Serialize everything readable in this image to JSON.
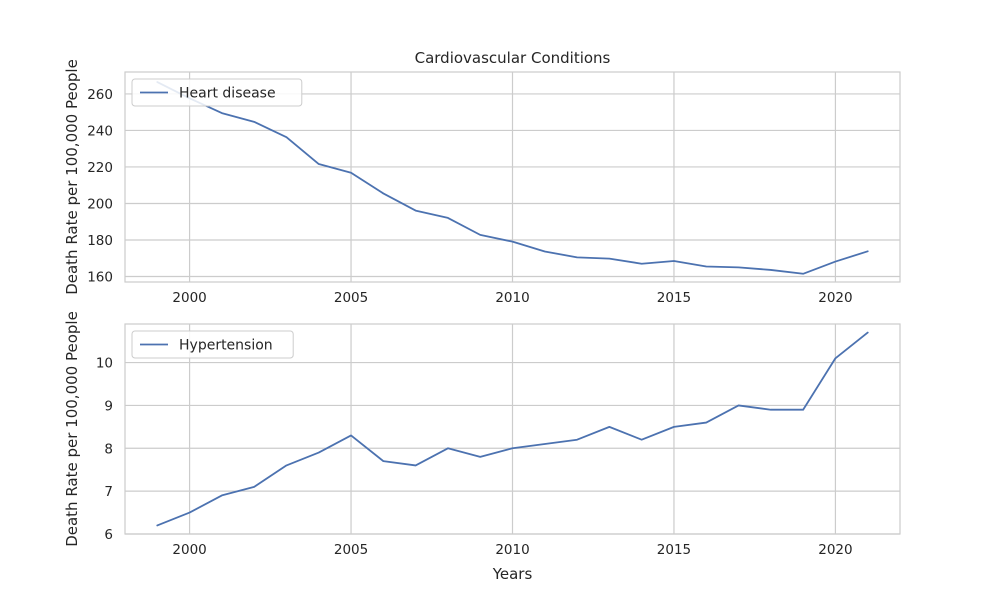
{
  "colors": {
    "series": "#4c72b0",
    "grid": "#cccccc"
  },
  "chart_data": [
    {
      "type": "line",
      "title": "Cardiovascular Conditions",
      "xlabel": "",
      "ylabel": "Death Rate per 100,000 People",
      "xlim": [
        1998,
        2022
      ],
      "ylim": [
        157,
        272
      ],
      "xticks": [
        2000,
        2005,
        2010,
        2015,
        2020
      ],
      "yticks": [
        160,
        180,
        200,
        220,
        240,
        260
      ],
      "grid": true,
      "legend": "upper-left",
      "x": [
        1999,
        2000,
        2001,
        2002,
        2003,
        2004,
        2005,
        2006,
        2007,
        2008,
        2009,
        2010,
        2011,
        2012,
        2013,
        2014,
        2015,
        2016,
        2017,
        2018,
        2019,
        2020,
        2021
      ],
      "series": [
        {
          "name": "Heart disease",
          "values": [
            266.5,
            257.6,
            249.5,
            244.7,
            236.3,
            221.6,
            216.8,
            205.5,
            196.1,
            192.1,
            182.8,
            179.1,
            173.7,
            170.5,
            169.8,
            167.0,
            168.5,
            165.5,
            165.0,
            163.6,
            161.5,
            168.2,
            173.8
          ]
        }
      ]
    },
    {
      "type": "line",
      "title": "",
      "xlabel": "Years",
      "ylabel": "Death Rate per 100,000 People",
      "xlim": [
        1998,
        2022
      ],
      "ylim": [
        6.0,
        10.9
      ],
      "xticks": [
        2000,
        2005,
        2010,
        2015,
        2020
      ],
      "yticks": [
        6,
        7,
        8,
        9,
        10
      ],
      "grid": true,
      "legend": "upper-left",
      "x": [
        1999,
        2000,
        2001,
        2002,
        2003,
        2004,
        2005,
        2006,
        2007,
        2008,
        2009,
        2010,
        2011,
        2012,
        2013,
        2014,
        2015,
        2016,
        2017,
        2018,
        2019,
        2020,
        2021
      ],
      "series": [
        {
          "name": "Hypertension",
          "values": [
            6.2,
            6.5,
            6.9,
            7.1,
            7.6,
            7.9,
            8.3,
            7.7,
            7.6,
            8.0,
            7.8,
            8.0,
            8.1,
            8.2,
            8.5,
            8.2,
            8.5,
            8.6,
            9.0,
            8.9,
            8.9,
            10.1,
            10.7
          ]
        }
      ]
    }
  ]
}
